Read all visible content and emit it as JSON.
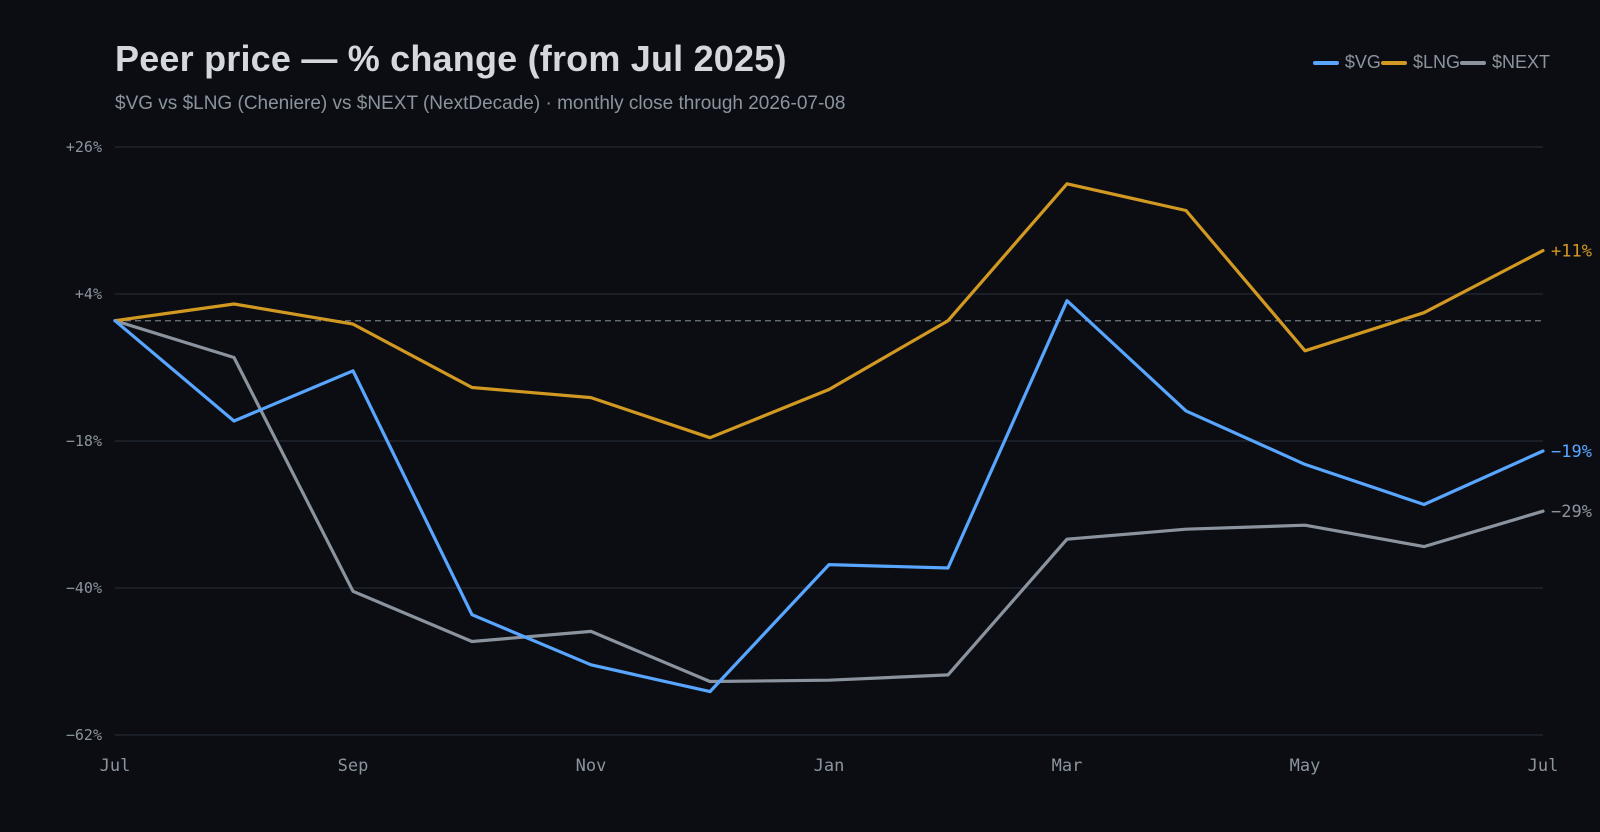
{
  "title": "Peer price — % change (from Jul 2025)",
  "subtitle": "$VG vs $LNG (Cheniere) vs $NEXT (NextDecade) · monthly close through 2026-07-08",
  "legend": [
    {
      "label": "$VG",
      "color": "#58a6ff"
    },
    {
      "label": "$LNG",
      "color": "#d29922"
    },
    {
      "label": "$NEXT",
      "color": "#8b949e"
    }
  ],
  "chart_data": {
    "type": "line",
    "title": "Peer price — % change (from Jul 2025)",
    "subtitle": "$VG vs $LNG (Cheniere) vs $NEXT (NextDecade) · monthly close through 2026-07-08",
    "x": [
      "Jul",
      "Aug",
      "Sep",
      "Oct",
      "Nov",
      "Dec",
      "Jan",
      "Feb",
      "Mar",
      "Apr",
      "May",
      "Jun",
      "Jul"
    ],
    "x_tick_labels": [
      "Jul",
      "Sep",
      "Nov",
      "Jan",
      "Mar",
      "May",
      "Jul"
    ],
    "y_tick_labels": [
      "+26%",
      "+4%",
      "−18%",
      "−40%",
      "−62%"
    ],
    "y_ticks": [
      26,
      4,
      -18,
      -40,
      -62
    ],
    "ylim": [
      -62,
      26
    ],
    "baseline": 0,
    "grid": true,
    "legend_position": "top-right",
    "series": [
      {
        "name": "$VG",
        "color": "#58a6ff",
        "values": [
          0,
          -15,
          -7.5,
          -44,
          -51.5,
          -55.5,
          -36.5,
          -37,
          3,
          -13.5,
          -21.5,
          -27.5,
          -19.5
        ],
        "end_label": "−19%"
      },
      {
        "name": "$LNG",
        "color": "#d29922",
        "values": [
          0,
          2.5,
          -0.5,
          -10,
          -11.5,
          -17.5,
          -10.3,
          0,
          20.5,
          16.5,
          -4.5,
          1.2,
          10.5
        ],
        "end_label": "+11%"
      },
      {
        "name": "$NEXT",
        "color": "#8b949e",
        "values": [
          0,
          -5.5,
          -40.5,
          -48,
          -46.5,
          -54,
          -53.8,
          -53,
          -32.7,
          -31.2,
          -30.6,
          -33.8,
          -28.5
        ],
        "end_label": "−29%"
      }
    ]
  }
}
